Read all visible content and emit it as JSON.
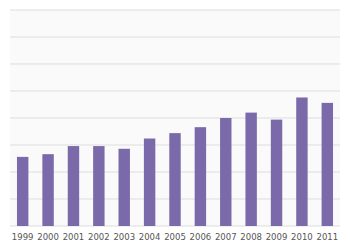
{
  "chart_data": {
    "type": "bar",
    "categories": [
      "1999",
      "2000",
      "2001",
      "2002",
      "2003",
      "2004",
      "2005",
      "2006",
      "2007",
      "2008",
      "2009",
      "2010",
      "2011"
    ],
    "values": [
      128,
      133,
      148,
      148,
      143,
      162,
      172,
      183,
      200,
      210,
      197,
      238,
      228
    ],
    "color": "#7b6aaa",
    "ylim": [
      0,
      400
    ],
    "yticks": [
      0,
      50,
      100,
      150,
      200,
      250,
      300,
      350,
      400
    ],
    "grid": true,
    "tick_labels": "x"
  }
}
